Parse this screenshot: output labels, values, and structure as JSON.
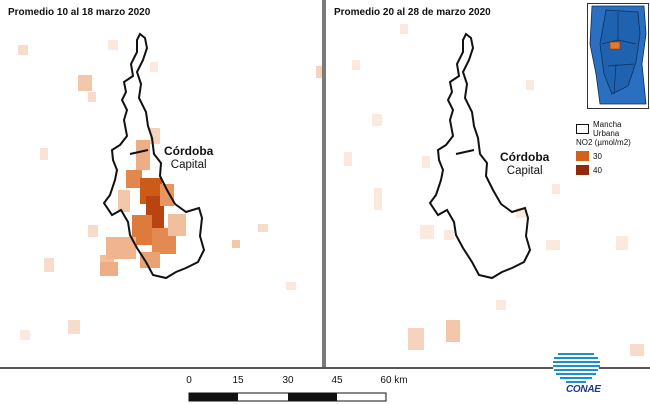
{
  "panels": [
    {
      "title": "Promedio 10 al 18 marzo 2020"
    },
    {
      "title": "Promedio 20 al 28 de marzo 2020"
    }
  ],
  "city": {
    "name": "Córdoba",
    "sub": "Capital"
  },
  "legend": {
    "urban_label": "Mancha Urbana",
    "no2_label": "NO2 (µmol/m2)",
    "items": [
      {
        "label": "30",
        "color": "#d2611a"
      },
      {
        "label": "40",
        "color": "#8f2a0a"
      }
    ]
  },
  "scale": {
    "ticks": [
      "0",
      "15",
      "30",
      "45",
      "60 km"
    ]
  },
  "logo": {
    "text": "CONAE"
  },
  "colors": {
    "urban_outline": "#111111",
    "inset_region": "#1f62b0",
    "inset_aoi": "#e37a2a"
  }
}
